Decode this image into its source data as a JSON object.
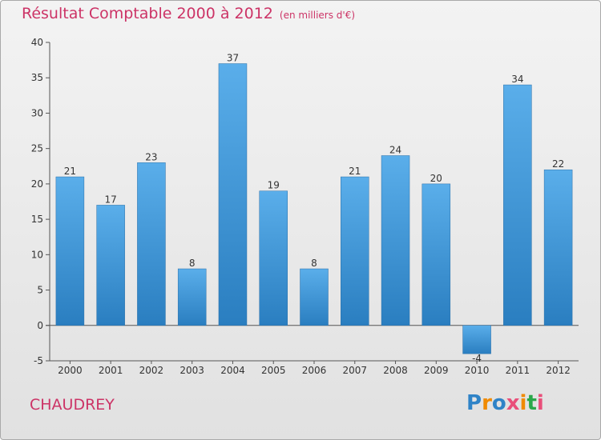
{
  "title": "Résultat Comptable 2000 à 2012",
  "subtitle": "(en milliers d'€)",
  "commune": "CHAUDREY",
  "logo": {
    "text": "Proxiti",
    "colors": [
      "#2f83c7",
      "#f08a00",
      "#2f83c7",
      "#e94f7a",
      "#f08a00",
      "#2aa84a",
      "#e94f7a"
    ]
  },
  "colors": {
    "title": "#cc3366",
    "bar_top": "#5aaeea",
    "bar_bottom": "#2a7ec0",
    "axis": "#555555",
    "grid": "#c8c8c8"
  },
  "chart_data": {
    "type": "bar",
    "title": "Résultat Comptable 2000 à 2012",
    "xlabel": "",
    "ylabel": "",
    "categories": [
      "2000",
      "2001",
      "2002",
      "2003",
      "2004",
      "2005",
      "2006",
      "2007",
      "2008",
      "2009",
      "2010",
      "2011",
      "2012"
    ],
    "values": [
      21,
      17,
      23,
      8,
      37,
      19,
      8,
      21,
      24,
      20,
      -4,
      34,
      22
    ],
    "ylim": [
      -5,
      40
    ],
    "yticks": [
      -5,
      0,
      5,
      10,
      15,
      20,
      25,
      30,
      35,
      40
    ],
    "grid": false,
    "legend": "none"
  }
}
